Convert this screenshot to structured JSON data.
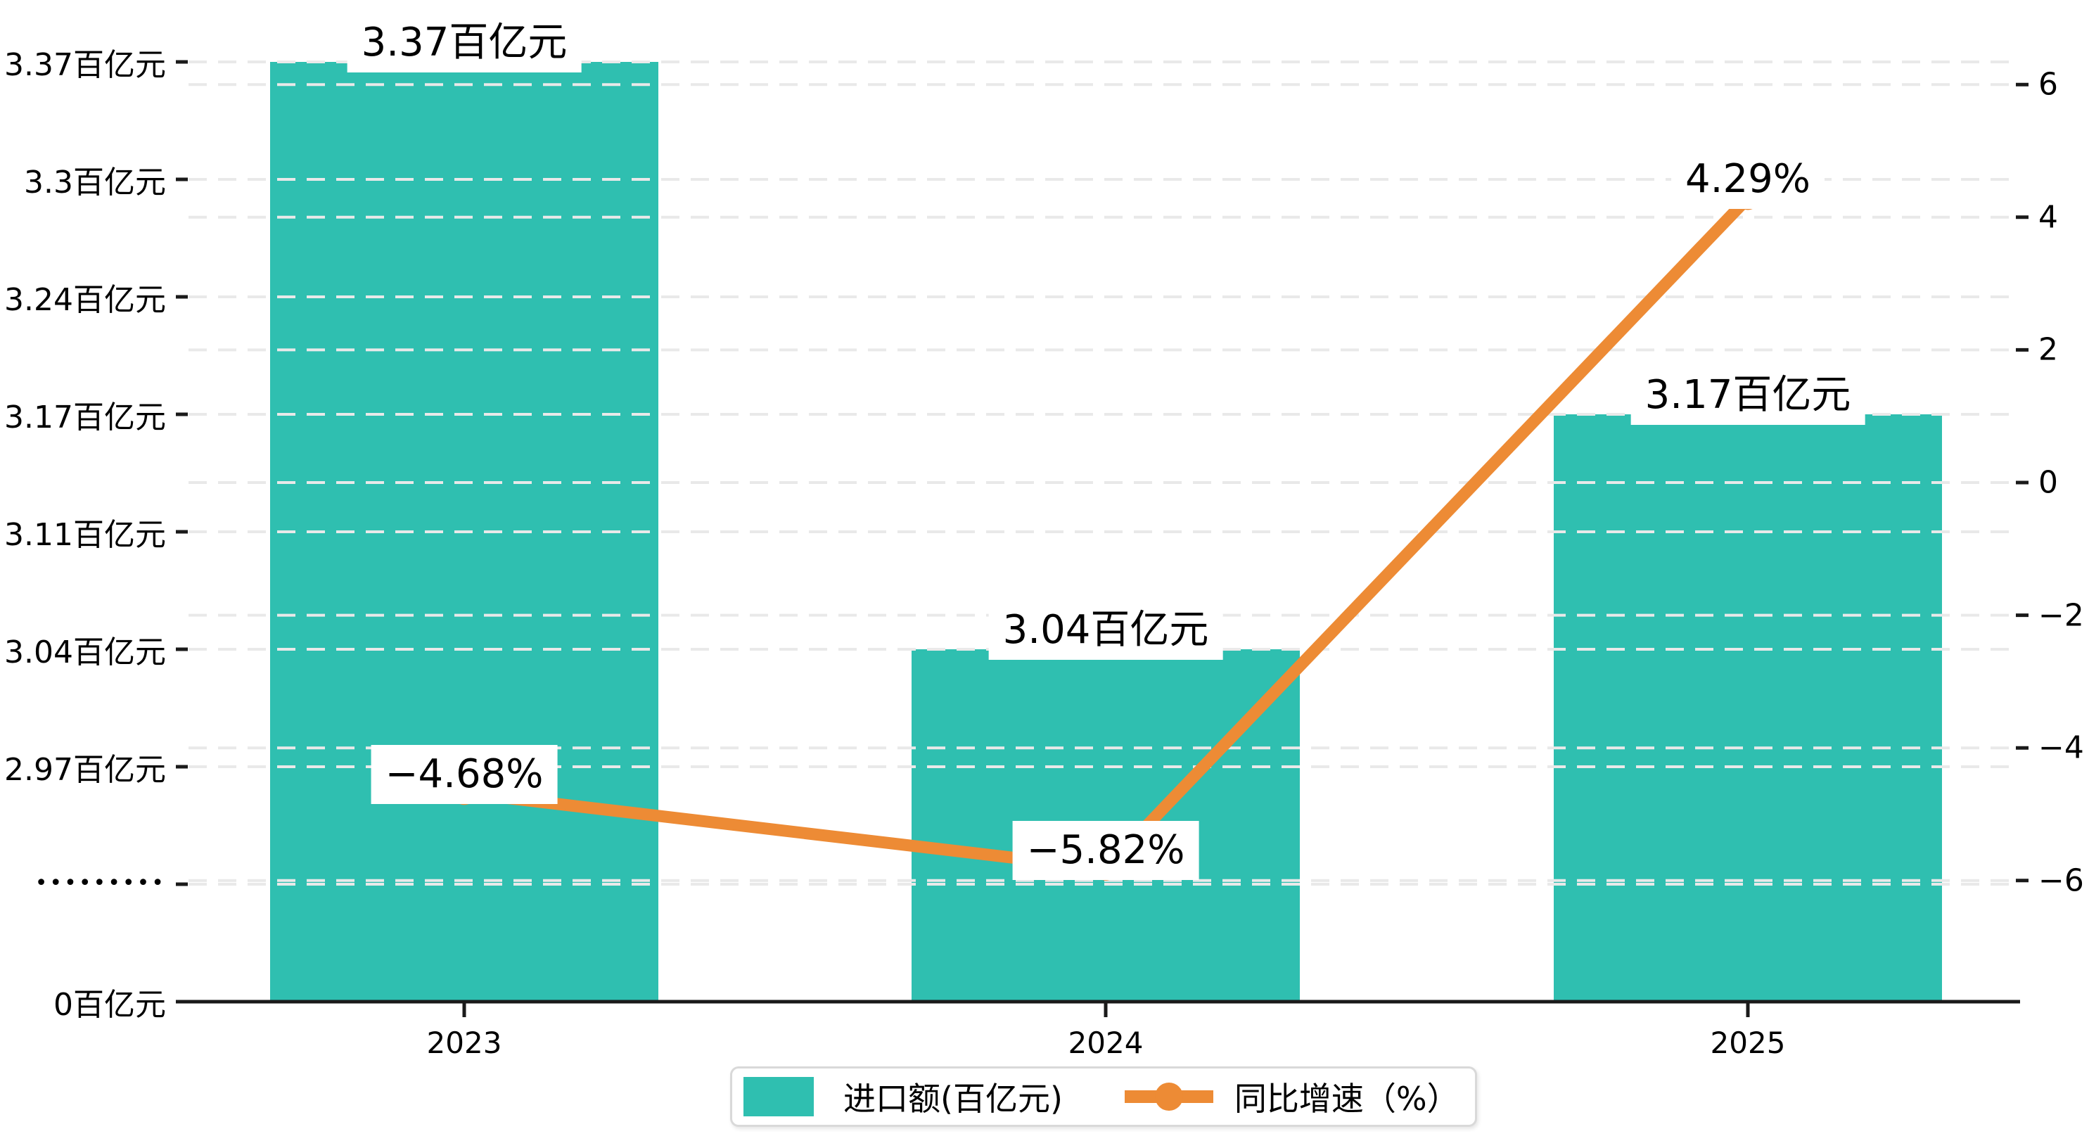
{
  "chart_data": {
    "type": "bar+line",
    "categories": [
      "2023",
      "2024",
      "2025"
    ],
    "series": [
      {
        "name": "进口额(百亿元)",
        "type": "bar",
        "unit": "百亿元",
        "color": "#2fbfb0",
        "values": [
          3.37,
          3.04,
          3.17
        ],
        "labels": [
          "3.37百亿元",
          "3.04百亿元",
          "3.17百亿元"
        ]
      },
      {
        "name": "同比增速（%）",
        "type": "line",
        "unit": "%",
        "color": "#ed8b35",
        "values": [
          -4.68,
          -5.82,
          4.29
        ],
        "labels": [
          "−4.68%",
          "−5.82%",
          "4.29%"
        ]
      }
    ],
    "left_axis": {
      "broken": true,
      "tick_labels": [
        "3.37百亿元",
        "3.3百亿元",
        "3.24百亿元",
        "3.17百亿元",
        "3.11百亿元",
        "3.04百亿元",
        "2.97百亿元",
        "•••••••••",
        "0百亿元"
      ],
      "tick_values": [
        3.37,
        3.3,
        3.24,
        3.17,
        3.11,
        3.04,
        2.97,
        null,
        0
      ]
    },
    "right_axis": {
      "min": -6,
      "max": 6,
      "step": 2,
      "tick_labels": [
        "6",
        "4",
        "2",
        "0",
        "−2",
        "−4",
        "−6"
      ],
      "tick_values": [
        6,
        4,
        2,
        0,
        -2,
        -4,
        -6
      ]
    },
    "grid": "dashed",
    "legend_position": "bottom"
  },
  "legend": {
    "items": [
      {
        "label": "进口额(百亿元)",
        "color": "#2fbfb0",
        "marker": "rect"
      },
      {
        "label": "同比增速（%）",
        "color": "#ed8b35",
        "marker": "line-circle"
      }
    ]
  },
  "colors": {
    "bar": "#2fbfb0",
    "line": "#ed8b35",
    "grid": "#e9e9e9",
    "axis": "#1a1a1a",
    "text": "#000000",
    "legend_border": "#d9d9d9",
    "label_bg": "#ffffff"
  }
}
